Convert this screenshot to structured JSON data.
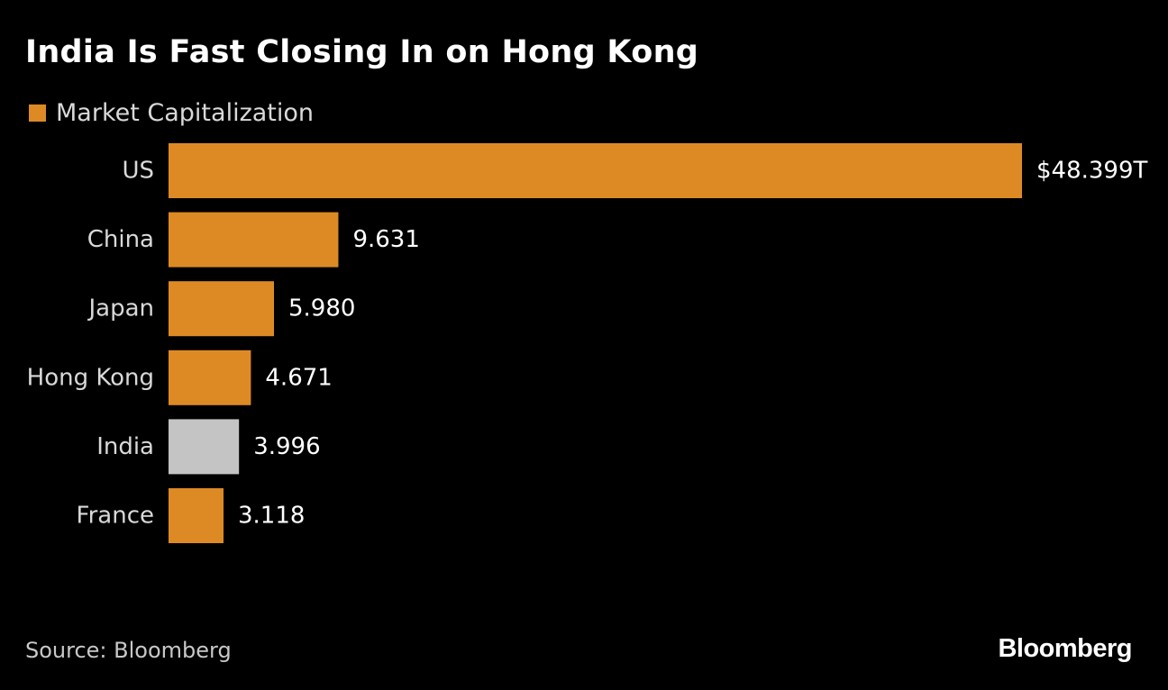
{
  "chart_data": {
    "type": "bar",
    "orientation": "horizontal",
    "title": "India Is Fast Closing In on Hong Kong",
    "legend": [
      {
        "label": "Market Capitalization",
        "color": "#dd8a25"
      }
    ],
    "categories": [
      "US",
      "China",
      "Japan",
      "Hong Kong",
      "India",
      "France"
    ],
    "values": [
      48.399,
      9.631,
      5.98,
      4.671,
      3.996,
      3.118
    ],
    "value_labels": [
      "$48.399T",
      "9.631",
      "5.980",
      "4.671",
      "3.996",
      "3.118"
    ],
    "bar_colors": [
      "#dd8a25",
      "#dd8a25",
      "#dd8a25",
      "#dd8a25",
      "#c4c4c4",
      "#dd8a25"
    ],
    "highlight": "India",
    "xlim": [
      0,
      48.399
    ],
    "grid": false,
    "legend_position": "top-left"
  },
  "footer": {
    "source": "Source: Bloomberg",
    "brand": "Bloomberg"
  },
  "colors": {
    "background": "#000000",
    "accent": "#dd8a25",
    "highlight": "#c4c4c4"
  }
}
